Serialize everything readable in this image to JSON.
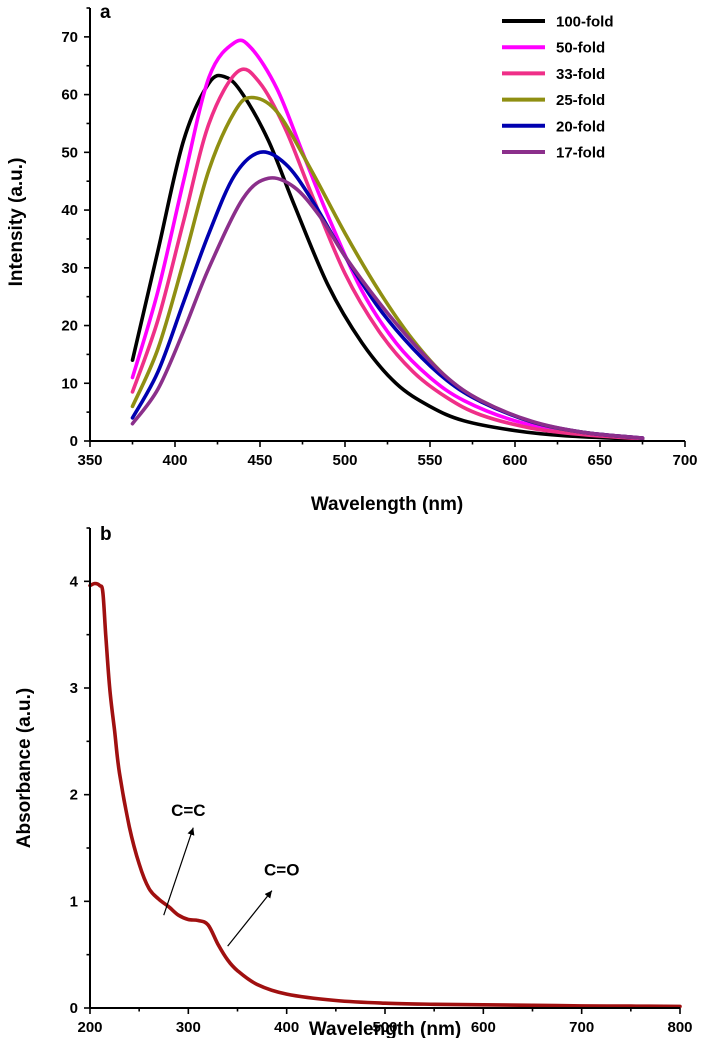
{
  "chart_data": [
    {
      "panel": "a",
      "type": "line",
      "xlabel": "Wavelength (nm)",
      "ylabel": "Intensity (a.u.)",
      "xlim": [
        350,
        700
      ],
      "ylim": [
        0,
        75
      ],
      "xticks": [
        350,
        400,
        450,
        500,
        550,
        600,
        650,
        700
      ],
      "yticks": [
        0,
        10,
        20,
        30,
        40,
        50,
        60,
        70
      ],
      "legend_position": "top-right",
      "series": [
        {
          "name": "100-fold",
          "color": "#000000",
          "x": [
            375,
            390,
            405,
            420,
            430,
            440,
            455,
            470,
            490,
            510,
            530,
            550,
            570,
            600,
            630,
            675
          ],
          "y": [
            14,
            33,
            52,
            62,
            63,
            60,
            52,
            41,
            27,
            17,
            10,
            6,
            3.5,
            1.8,
            0.9,
            0.3
          ]
        },
        {
          "name": "50-fold",
          "color": "#ff00ff",
          "x": [
            375,
            390,
            405,
            420,
            435,
            445,
            460,
            475,
            490,
            510,
            530,
            550,
            570,
            600,
            630,
            675
          ],
          "y": [
            11,
            26,
            45,
            63,
            69,
            68,
            61,
            50,
            39,
            26,
            17,
            11,
            7,
            3.5,
            1.8,
            0.5
          ]
        },
        {
          "name": "33-fold",
          "color": "#ef2f88",
          "x": [
            375,
            390,
            405,
            420,
            437,
            450,
            465,
            480,
            500,
            520,
            540,
            560,
            580,
            610,
            640,
            675
          ],
          "y": [
            8.5,
            21,
            38,
            55,
            64,
            62,
            54,
            43,
            29,
            19,
            12,
            7.5,
            4.5,
            2.2,
            1.1,
            0.4
          ]
        },
        {
          "name": "25-fold",
          "color": "#8f8f12",
          "x": [
            375,
            390,
            405,
            420,
            435,
            445,
            460,
            480,
            500,
            520,
            540,
            560,
            580,
            610,
            640,
            675
          ],
          "y": [
            6,
            16,
            31,
            47,
            57,
            59.5,
            57,
            47,
            36,
            26,
            17.5,
            11,
            7,
            3.3,
            1.5,
            0.5
          ]
        },
        {
          "name": "20-fold",
          "color": "#0000b0",
          "x": [
            375,
            390,
            405,
            420,
            435,
            450,
            465,
            480,
            500,
            520,
            540,
            560,
            580,
            610,
            640,
            675
          ],
          "y": [
            4,
            12,
            24,
            36,
            46,
            50,
            48,
            42,
            32,
            23,
            16,
            10.5,
            6.8,
            3.3,
            1.5,
            0.5
          ]
        },
        {
          "name": "17-fold",
          "color": "#8b2f8b",
          "x": [
            375,
            390,
            405,
            420,
            440,
            455,
            470,
            485,
            500,
            520,
            540,
            560,
            580,
            610,
            640,
            675
          ],
          "y": [
            3,
            9,
            19,
            30,
            42,
            45.5,
            44,
            39,
            32,
            24,
            17,
            11,
            7,
            3.4,
            1.5,
            0.5
          ]
        }
      ]
    },
    {
      "panel": "b",
      "type": "line",
      "xlabel": "Wavelength (nm)",
      "ylabel": "Absorbance (a.u.)",
      "xlim": [
        200,
        800
      ],
      "ylim": [
        0,
        4.5
      ],
      "xticks": [
        200,
        300,
        400,
        500,
        600,
        700,
        800
      ],
      "yticks": [
        0,
        1,
        2,
        3,
        4
      ],
      "series": [
        {
          "name": "absorbance",
          "color": "#a01010",
          "x": [
            200,
            205,
            210,
            213,
            216,
            220,
            225,
            230,
            240,
            250,
            260,
            270,
            280,
            290,
            300,
            310,
            320,
            330,
            340,
            350,
            370,
            400,
            450,
            500,
            550,
            600,
            650,
            700,
            750,
            800
          ],
          "y": [
            3.96,
            3.98,
            3.96,
            3.9,
            3.5,
            3.0,
            2.6,
            2.2,
            1.7,
            1.35,
            1.12,
            1.02,
            0.95,
            0.87,
            0.83,
            0.82,
            0.78,
            0.6,
            0.45,
            0.35,
            0.22,
            0.13,
            0.07,
            0.045,
            0.035,
            0.03,
            0.025,
            0.02,
            0.018,
            0.015
          ]
        }
      ],
      "annotations": [
        {
          "text": "C=C",
          "arrow_from": [
            275,
            0.87
          ],
          "arrow_to": [
            305,
            1.69
          ],
          "label_at": [
            300,
            1.8
          ]
        },
        {
          "text": "C=O",
          "arrow_from": [
            340,
            0.58
          ],
          "arrow_to": [
            385,
            1.1
          ],
          "label_at": [
            395,
            1.24
          ]
        }
      ]
    }
  ]
}
